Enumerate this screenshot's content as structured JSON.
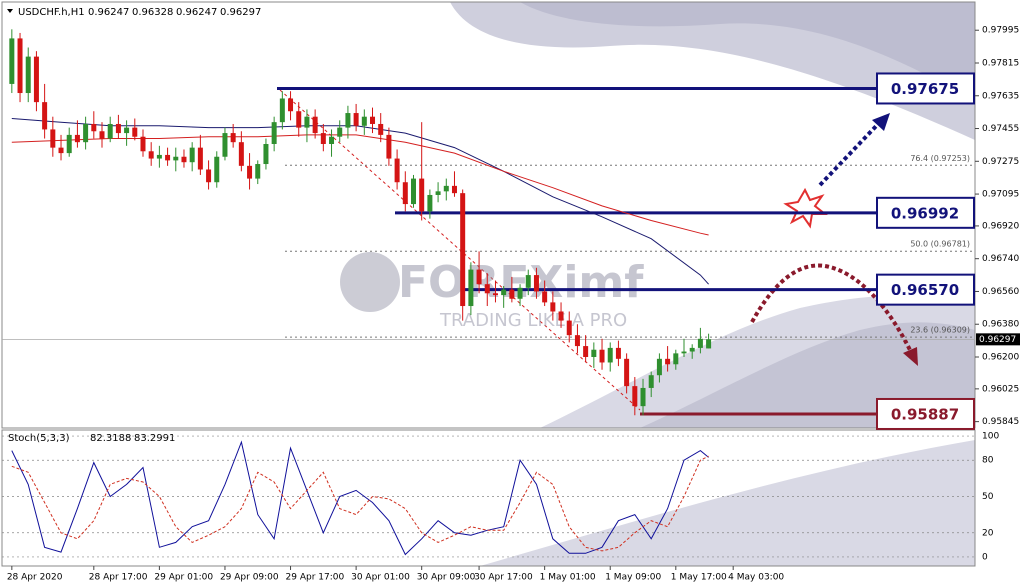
{
  "chart_data": [
    {
      "type": "candlestick",
      "symbol": "USDCHF.h,H1",
      "up_color": "#2f8f2f",
      "down_color": "#d41414",
      "xlim": [
        -1.2,
        117.5
      ],
      "ylim": [
        0.9581,
        0.9815
      ],
      "yticks": [
        0.97995,
        0.97815,
        0.97635,
        0.97455,
        0.97275,
        0.97095,
        {
          "value": 0.9692,
          "label": "0.96920"
        },
        {
          "value": 0.9674,
          "label": "0.96740"
        },
        {
          "value": 0.9656,
          "label": "0.96560"
        },
        {
          "value": 0.9638,
          "label": "0.96380"
        },
        {
          "value": 0.962,
          "label": "0.96200"
        },
        0.96025,
        0.95845
      ],
      "candles": [
        [
          0.977,
          0.98,
          0.9765,
          0.9795
        ],
        [
          0.9795,
          0.9798,
          0.976,
          0.9765
        ],
        [
          0.9765,
          0.979,
          0.976,
          0.9785
        ],
        [
          0.9785,
          0.9788,
          0.9755,
          0.976
        ],
        [
          0.976,
          0.977,
          0.974,
          0.9745
        ],
        [
          0.9745,
          0.9752,
          0.973,
          0.9735
        ],
        [
          0.9735,
          0.9742,
          0.9728,
          0.9732
        ],
        [
          0.9732,
          0.9746,
          0.973,
          0.9742
        ],
        [
          0.9742,
          0.975,
          0.9735,
          0.9738
        ],
        [
          0.9738,
          0.9752,
          0.9734,
          0.9748
        ],
        [
          0.9748,
          0.9755,
          0.974,
          0.9744
        ],
        [
          0.9744,
          0.9749,
          0.9735,
          0.974
        ],
        [
          0.974,
          0.9752,
          0.9738,
          0.9748
        ],
        [
          0.9748,
          0.9753,
          0.974,
          0.9743
        ],
        [
          0.9743,
          0.975,
          0.9736,
          0.9746
        ],
        [
          0.9746,
          0.9751,
          0.9739,
          0.9741
        ],
        [
          0.9741,
          0.9745,
          0.973,
          0.9733
        ],
        [
          0.9733,
          0.9738,
          0.9725,
          0.9729
        ],
        [
          0.9729,
          0.9736,
          0.9724,
          0.9731
        ],
        [
          0.9731,
          0.9735,
          0.9725,
          0.9728
        ],
        [
          0.9728,
          0.9735,
          0.9722,
          0.973
        ],
        [
          0.973,
          0.9734,
          0.9724,
          0.9727
        ],
        [
          0.9727,
          0.9738,
          0.9722,
          0.9735
        ],
        [
          0.9735,
          0.9742,
          0.972,
          0.9723
        ],
        [
          0.9723,
          0.9728,
          0.9712,
          0.9716
        ],
        [
          0.9716,
          0.9733,
          0.9713,
          0.973
        ],
        [
          0.973,
          0.9746,
          0.9728,
          0.9743
        ],
        [
          0.9743,
          0.9748,
          0.9735,
          0.9738
        ],
        [
          0.9738,
          0.9744,
          0.9722,
          0.9725
        ],
        [
          0.9725,
          0.9732,
          0.9712,
          0.9718
        ],
        [
          0.9718,
          0.9728,
          0.9715,
          0.9726
        ],
        [
          0.9726,
          0.974,
          0.9723,
          0.9737
        ],
        [
          0.9737,
          0.9752,
          0.9733,
          0.9749
        ],
        [
          0.9749,
          0.9766,
          0.9745,
          0.9762
        ],
        [
          0.9762,
          0.9766,
          0.975,
          0.9755
        ],
        [
          0.9755,
          0.976,
          0.9741,
          0.9746
        ],
        [
          0.9746,
          0.9756,
          0.9738,
          0.9752
        ],
        [
          0.9752,
          0.9756,
          0.974,
          0.9743
        ],
        [
          0.9743,
          0.9748,
          0.9733,
          0.9737
        ],
        [
          0.9737,
          0.9745,
          0.973,
          0.9741
        ],
        [
          0.9741,
          0.975,
          0.9738,
          0.9746
        ],
        [
          0.9746,
          0.9758,
          0.974,
          0.9754
        ],
        [
          0.9754,
          0.9759,
          0.9744,
          0.9747
        ],
        [
          0.9747,
          0.9756,
          0.9742,
          0.9752
        ],
        [
          0.9752,
          0.9757,
          0.9743,
          0.9748
        ],
        [
          0.9748,
          0.9754,
          0.9738,
          0.9742
        ],
        [
          0.9742,
          0.9746,
          0.9725,
          0.9729
        ],
        [
          0.9729,
          0.9734,
          0.9712,
          0.9716
        ],
        [
          0.9716,
          0.9722,
          0.97,
          0.9704
        ],
        [
          0.9704,
          0.972,
          0.9702,
          0.9718
        ],
        [
          0.9718,
          0.9749,
          0.9695,
          0.97
        ],
        [
          0.97,
          0.9712,
          0.9696,
          0.9709
        ],
        [
          0.9709,
          0.9716,
          0.9705,
          0.9711
        ],
        [
          0.9711,
          0.9718,
          0.9706,
          0.9714
        ],
        [
          0.9714,
          0.9722,
          0.9708,
          0.971
        ],
        [
          0.971,
          0.9712,
          0.964,
          0.9648
        ],
        [
          0.9648,
          0.9672,
          0.9643,
          0.9668
        ],
        [
          0.9668,
          0.9678,
          0.9655,
          0.966
        ],
        [
          0.966,
          0.9666,
          0.9648,
          0.9655
        ],
        [
          0.9655,
          0.9662,
          0.965,
          0.9654
        ],
        [
          0.9654,
          0.9659,
          0.9647,
          0.9657
        ],
        [
          0.9657,
          0.9664,
          0.965,
          0.9652
        ],
        [
          0.9652,
          0.966,
          0.9648,
          0.9658
        ],
        [
          0.9658,
          0.9668,
          0.9654,
          0.9665
        ],
        [
          0.9665,
          0.9669,
          0.9652,
          0.9656
        ],
        [
          0.9656,
          0.9662,
          0.9648,
          0.965
        ],
        [
          0.965,
          0.9656,
          0.964,
          0.9645
        ],
        [
          0.9645,
          0.965,
          0.9636,
          0.964
        ],
        [
          0.964,
          0.9645,
          0.9628,
          0.9632
        ],
        [
          0.9632,
          0.9638,
          0.9622,
          0.9626
        ],
        [
          0.9626,
          0.9632,
          0.9617,
          0.962
        ],
        [
          0.962,
          0.9628,
          0.9614,
          0.9624
        ],
        [
          0.9624,
          0.963,
          0.9613,
          0.9617
        ],
        [
          0.9617,
          0.9628,
          0.9612,
          0.9625
        ],
        [
          0.9625,
          0.9629,
          0.9615,
          0.9619
        ],
        [
          0.9619,
          0.9622,
          0.96,
          0.9604
        ],
        [
          0.9604,
          0.9609,
          0.9588,
          0.9593
        ],
        [
          0.9593,
          0.9608,
          0.9588,
          0.9603
        ],
        [
          0.9603,
          0.9612,
          0.9598,
          0.961
        ],
        [
          0.961,
          0.9622,
          0.9606,
          0.9619
        ],
        [
          0.9619,
          0.9626,
          0.9612,
          0.9616
        ],
        [
          0.9616,
          0.9624,
          0.9613,
          0.9622
        ],
        [
          0.9622,
          0.963,
          0.962,
          0.9623
        ],
        [
          0.9623,
          0.9627,
          0.9619,
          0.9625
        ],
        [
          0.9625,
          0.9636,
          0.9622,
          0.963
        ],
        [
          0.96247,
          0.96328,
          0.96247,
          0.96297
        ]
      ],
      "lines": [
        {
          "color": "#1a1a6e",
          "x": [
            0,
            6,
            12,
            18,
            24,
            30,
            36,
            42,
            48,
            54,
            60,
            66,
            72,
            78,
            84,
            85
          ],
          "values": [
            0.9751,
            0.9749,
            0.9747,
            0.9747,
            0.9746,
            0.9746,
            0.9747,
            0.9747,
            0.9743,
            0.9735,
            0.9722,
            0.9708,
            0.9697,
            0.9685,
            0.9665,
            0.966
          ]
        },
        {
          "color": "#d42020",
          "x": [
            0,
            6,
            12,
            18,
            24,
            30,
            36,
            42,
            48,
            54,
            60,
            66,
            72,
            78,
            84,
            85
          ],
          "values": [
            0.9738,
            0.9739,
            0.974,
            0.974,
            0.9741,
            0.9741,
            0.9742,
            0.9742,
            0.9738,
            0.9732,
            0.9722,
            0.9713,
            0.9703,
            0.9695,
            0.9688,
            0.9687
          ]
        }
      ],
      "levels": [
        {
          "value": 0.97675,
          "label": "0.97675",
          "color": "#12127a"
        },
        {
          "value": 0.96992,
          "label": "0.96992",
          "color": "#12127a"
        },
        {
          "value": 0.9657,
          "label": "0.96570",
          "color": "#12127a"
        },
        {
          "value": 0.95887,
          "label": "0.95887",
          "color": "#8a1a2c"
        }
      ],
      "fib_levels": [
        {
          "value": 0.97253,
          "label": "76.4 (0.97253)"
        },
        {
          "value": 0.96781,
          "label": "50.0 (0.96781)"
        },
        {
          "value": 0.96309,
          "label": "23.6 (0.96309)"
        }
      ],
      "last_price": 0.96297,
      "watermark": {
        "brand": "FOREXimf",
        "tagline": "TRADING LIKE A PRO"
      }
    },
    {
      "type": "stochastic",
      "title": "Stoch(5,3,3)",
      "xlim": [
        -1.2,
        117.5
      ],
      "ylim": [
        -7.5,
        105
      ],
      "yticks": [
        100,
        80,
        50,
        20,
        0
      ],
      "grid": true,
      "x": [
        0,
        2,
        4,
        6,
        8,
        10,
        12,
        14,
        16,
        18,
        20,
        22,
        24,
        26,
        28,
        30,
        32,
        34,
        36,
        38,
        40,
        42,
        44,
        46,
        48,
        50,
        52,
        54,
        56,
        58,
        60,
        62,
        64,
        66,
        68,
        70,
        72,
        74,
        76,
        78,
        80,
        82,
        84,
        85
      ],
      "series": [
        {
          "color": "#10109a",
          "dashed": false,
          "values": [
            88,
            60,
            8,
            4,
            40,
            78,
            50,
            60,
            74,
            8,
            12,
            25,
            30,
            60,
            95,
            35,
            15,
            90,
            55,
            20,
            50,
            55,
            45,
            30,
            2,
            15,
            30,
            20,
            18,
            22,
            25,
            80,
            60,
            15,
            3,
            3,
            8,
            30,
            35,
            15,
            40,
            80,
            88,
            82.3188
          ]
        },
        {
          "color": "#d03020",
          "dashed": true,
          "values": [
            75,
            70,
            45,
            20,
            15,
            30,
            60,
            65,
            62,
            50,
            25,
            12,
            18,
            25,
            40,
            70,
            62,
            40,
            55,
            70,
            40,
            35,
            50,
            48,
            40,
            20,
            12,
            18,
            25,
            22,
            22,
            45,
            70,
            60,
            25,
            8,
            5,
            8,
            20,
            30,
            25,
            50,
            80,
            83.2991
          ]
        }
      ],
      "xticks": [
        {
          "value": 0,
          "label": "28 Apr 2020"
        },
        {
          "value": 10,
          "label": "28 Apr 17:00"
        },
        {
          "value": 18,
          "label": "29 Apr 01:00"
        },
        {
          "value": 26,
          "label": "29 Apr 09:00"
        },
        {
          "value": 34,
          "label": "29 Apr 17:00"
        },
        {
          "value": 42,
          "label": "30 Apr 01:00"
        },
        {
          "value": 50,
          "label": "30 Apr 09:00"
        },
        {
          "value": 57,
          "label": "30 Apr 17:00"
        },
        {
          "value": 65,
          "label": "1 May 01:00"
        },
        {
          "value": 73,
          "label": "1 May 09:00"
        },
        {
          "value": 81,
          "label": "1 May 17:00"
        },
        {
          "value": 88,
          "label": "4 May 03:00"
        }
      ]
    }
  ]
}
